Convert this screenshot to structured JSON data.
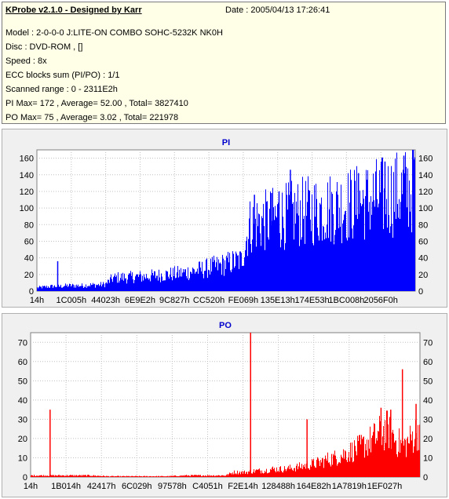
{
  "header": {
    "title": "KProbe v2.1.0 - Designed by Karr",
    "date": "Date : 2005/04/13 17:26:41",
    "lines": [
      "Model : 2-0-0-0 J:LITE-ON COMBO SOHC-5232K NK0H",
      "Disc : DVD-ROM ,  []",
      "Speed : 8x",
      "ECC blocks sum (PI/PO) : 1/1",
      "Scanned range : 0 - 2311E2h",
      "PI Max= 172 , Average= 52.00 , Total= 3827410",
      "PO Max= 75 , Average= 3.02 , Total= 221978"
    ]
  },
  "colors": {
    "pi": "#0000ff",
    "po": "#ff0000",
    "background": "#ffffff",
    "panel": "#f0f0f0",
    "title": "#0000cc"
  },
  "chart_data": [
    {
      "type": "bar",
      "title": "PI",
      "ylim": [
        0,
        170
      ],
      "yticks": [
        0,
        20,
        40,
        60,
        80,
        100,
        120,
        140,
        160
      ],
      "xticks": [
        "14h",
        "1C005h",
        "44023h",
        "6E9E2h",
        "9C827h",
        "CC520h",
        "FE069h",
        "135E13h",
        "174E53h",
        "1BC008h",
        "2056F0h"
      ],
      "grid": true,
      "series": [
        {
          "envelope_x": [
            0,
            0.02,
            0.04,
            0.06,
            0.08,
            0.1,
            0.12,
            0.14,
            0.16,
            0.18,
            0.2,
            0.22,
            0.24,
            0.26,
            0.28,
            0.3,
            0.32,
            0.34,
            0.36,
            0.38,
            0.4,
            0.42,
            0.44,
            0.46,
            0.48,
            0.5,
            0.52,
            0.54,
            0.56,
            0.58,
            0.6,
            0.62,
            0.64,
            0.66,
            0.68,
            0.7,
            0.72,
            0.74,
            0.76,
            0.78,
            0.8,
            0.82,
            0.84,
            0.86,
            0.88,
            0.9,
            0.92,
            0.94,
            0.96,
            0.98,
            1.0
          ],
          "envelope_y": [
            5,
            6,
            7,
            7,
            8,
            8,
            8,
            9,
            9,
            10,
            19,
            20,
            20,
            21,
            21,
            22,
            23,
            24,
            25,
            26,
            28,
            30,
            32,
            35,
            37,
            40,
            43,
            45,
            95,
            100,
            102,
            105,
            108,
            110,
            113,
            115,
            117,
            118,
            120,
            122,
            124,
            126,
            128,
            130,
            133,
            136,
            138,
            141,
            144,
            147,
            152
          ],
          "spikes": [
            {
              "x": 0.055,
              "y": 36
            },
            {
              "x": 0.575,
              "y": 116
            },
            {
              "x": 0.62,
              "y": 118
            },
            {
              "x": 0.64,
              "y": 120
            },
            {
              "x": 0.67,
              "y": 146
            },
            {
              "x": 0.85,
              "y": 142
            },
            {
              "x": 0.92,
              "y": 156
            },
            {
              "x": 0.97,
              "y": 163
            },
            {
              "x": 0.995,
              "y": 172
            }
          ]
        }
      ]
    },
    {
      "type": "bar",
      "title": "PO",
      "ylim": [
        0,
        75
      ],
      "yticks": [
        0,
        10,
        20,
        30,
        40,
        50,
        60,
        70
      ],
      "xticks": [
        "14h",
        "1B014h",
        "42417h",
        "6C029h",
        "97578h",
        "C4051h",
        "F2E14h",
        "128488h",
        "164E82h",
        "1A7819h",
        "1EF027h"
      ],
      "grid": true,
      "series": [
        {
          "envelope_x": [
            0,
            0.05,
            0.1,
            0.15,
            0.2,
            0.25,
            0.3,
            0.35,
            0.4,
            0.45,
            0.5,
            0.52,
            0.55,
            0.58,
            0.6,
            0.62,
            0.65,
            0.68,
            0.7,
            0.72,
            0.74,
            0.76,
            0.78,
            0.8,
            0.82,
            0.84,
            0.86,
            0.88,
            0.9,
            0.92,
            0.94,
            0.96,
            0.98,
            1.0
          ],
          "envelope_y": [
            1,
            1,
            1,
            1,
            0.5,
            0.5,
            0.5,
            0.5,
            1,
            1,
            1,
            3,
            3,
            4,
            4,
            5,
            5,
            6,
            7,
            8,
            9,
            11,
            12,
            14,
            16,
            18,
            21,
            24,
            28,
            30,
            22,
            20,
            25,
            32
          ],
          "spikes": [
            {
              "x": 0.05,
              "y": 35
            },
            {
              "x": 0.565,
              "y": 75
            },
            {
              "x": 0.71,
              "y": 30
            },
            {
              "x": 0.9,
              "y": 36
            },
            {
              "x": 0.925,
              "y": 35
            },
            {
              "x": 0.955,
              "y": 56
            },
            {
              "x": 0.99,
              "y": 38
            }
          ]
        }
      ]
    }
  ]
}
